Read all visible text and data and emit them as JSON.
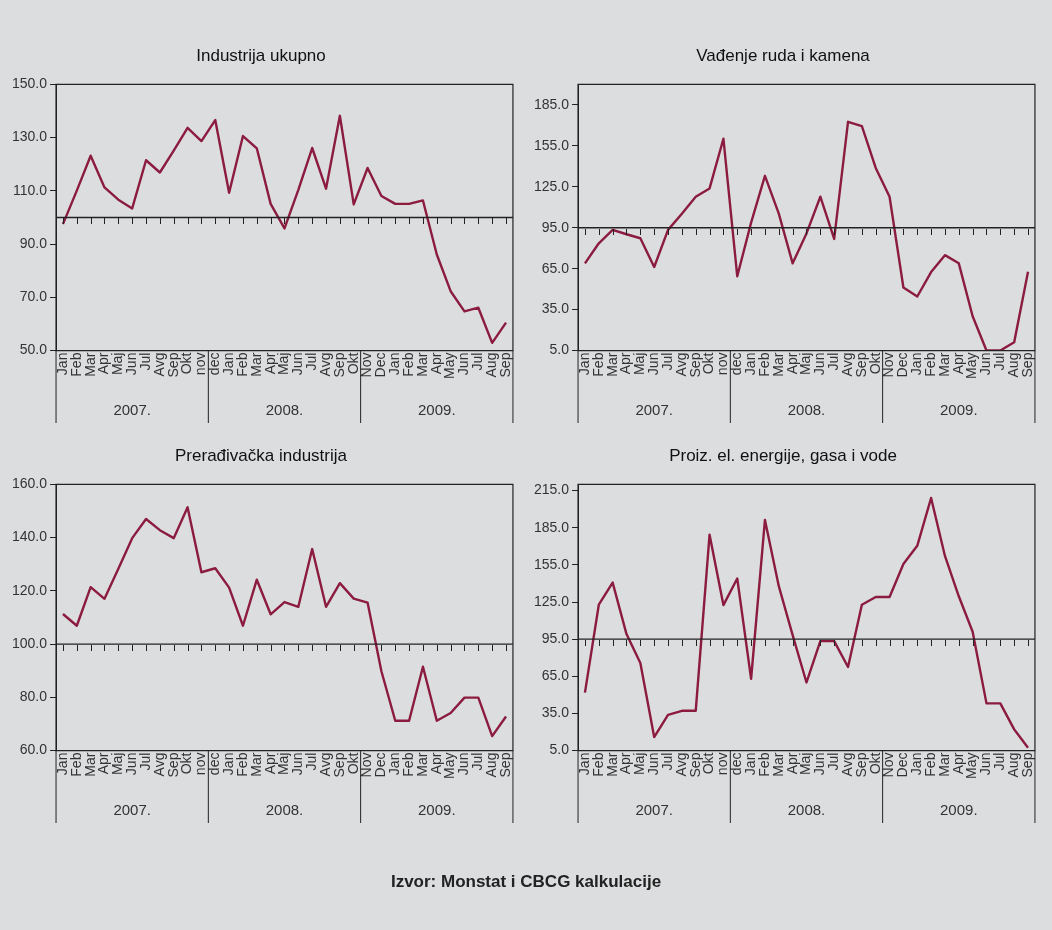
{
  "chart_data": [
    {
      "type": "line",
      "title": "Industrija ukupno",
      "categories": [
        "Jan",
        "Feb",
        "Mar",
        "Apr",
        "Maj",
        "Jun",
        "Jul",
        "Avg",
        "Sep",
        "Okt",
        "nov",
        "dec",
        "Jan",
        "Feb",
        "Mar",
        "Apr",
        "Maj",
        "Jun",
        "Jul",
        "Avg",
        "Sep",
        "Okt",
        "Nov",
        "Dec",
        "Jan",
        "Feb",
        "Mar",
        "Apr",
        "May",
        "Jun",
        "Jul",
        "Aug",
        "Sep"
      ],
      "series": [
        {
          "color": "#8b1c3f",
          "values": [
            97.5,
            110.1,
            123.2,
            111.3,
            106.7,
            103.4,
            121.5,
            116.9,
            125.1,
            133.7,
            128.7,
            136.6,
            109.3,
            130.6,
            126.0,
            105.1,
            95.9,
            110.4,
            126.1,
            110.8,
            138.2,
            104.9,
            118.6,
            108.1,
            105.1,
            105.1,
            106.4,
            86.1,
            72.3,
            64.7,
            66.1,
            52.9,
            60.5
          ]
        }
      ],
      "ylim": [
        50,
        150
      ],
      "yticks": [
        {
          "value": 50,
          "label": "50.0"
        },
        {
          "value": 70,
          "label": "70.0"
        },
        {
          "value": 90,
          "label": "90.0"
        },
        {
          "value": 110,
          "label": "110.0"
        },
        {
          "value": 130,
          "label": "130.0"
        },
        {
          "value": 150,
          "label": "150.0"
        }
      ],
      "ref_lines": [
        {
          "axis": "y",
          "value": 100
        }
      ],
      "grid": false,
      "legend": false,
      "marker": "none",
      "line_style": "solid",
      "annotations": [
        "2007.",
        "2008.",
        "2009."
      ]
    },
    {
      "type": "line",
      "title": "Vađenje ruda i kamena",
      "categories": [
        "Jan",
        "Feb",
        "Mar",
        "Apr",
        "Maj",
        "Jun",
        "Jul",
        "Avg",
        "Sep",
        "Okt",
        "nov",
        "dec",
        "Jan",
        "Feb",
        "Mar",
        "Apr",
        "Maj",
        "Jun",
        "Jul",
        "Avg",
        "Sep",
        "Okt",
        "Nov",
        "Dec",
        "Jan",
        "Feb",
        "Mar",
        "Apr",
        "May",
        "Jun",
        "Jul",
        "Aug",
        "Sep"
      ],
      "series": [
        {
          "color": "#8b1c3f",
          "values": [
            68.9,
            83.6,
            93.4,
            90.2,
            87.3,
            66.2,
            93.4,
            105.3,
            117.7,
            123.8,
            160.2,
            59.4,
            98.7,
            133.0,
            105.3,
            68.9,
            90.8,
            117.7,
            86.8,
            172.6,
            169.4,
            138.8,
            117.7,
            51.2,
            44.6,
            62.5,
            74.9,
            68.9,
            30.1,
            5,
            5,
            11.1,
            62.8
          ]
        }
      ],
      "ylim": [
        5,
        200
      ],
      "yticks": [
        {
          "value": 5,
          "label": "5.0"
        },
        {
          "value": 35,
          "label": "35.0"
        },
        {
          "value": 65,
          "label": "65.0"
        },
        {
          "value": 95,
          "label": "95.0"
        },
        {
          "value": 125,
          "label": "125.0"
        },
        {
          "value": 155,
          "label": "155.0"
        },
        {
          "value": 185,
          "label": "185.0"
        }
      ],
      "ref_lines": [
        {
          "axis": "y",
          "value": 95
        }
      ],
      "grid": false,
      "legend": false,
      "marker": "none",
      "line_style": "solid",
      "annotations": [
        "2007.",
        "2008.",
        "2009."
      ]
    },
    {
      "type": "line",
      "title": "Prerađivačka industrija",
      "categories": [
        "Jan",
        "Feb",
        "Mar",
        "Apr",
        "Maj",
        "Jun",
        "Jul",
        "Avg",
        "Sep",
        "Okt",
        "nov",
        "dec",
        "Jan",
        "Feb",
        "Mar",
        "Apr",
        "Maj",
        "Jun",
        "Jul",
        "Avg",
        "Sep",
        "Okt",
        "Nov",
        "Dec",
        "Jan",
        "Feb",
        "Mar",
        "Apr",
        "May",
        "Jun",
        "Jul",
        "Aug",
        "Sep"
      ],
      "series": [
        {
          "color": "#8b1c3f",
          "values": [
            111.3,
            106.9,
            121.4,
            117.0,
            128.3,
            139.8,
            147.0,
            142.8,
            139.8,
            151.4,
            127.0,
            128.5,
            121.2,
            106.9,
            124.2,
            111.2,
            115.8,
            114.0,
            135.7,
            114.0,
            122.9,
            117.1,
            115.6,
            89.8,
            71.2,
            71.2,
            91.5,
            71.2,
            74.1,
            79.9,
            79.9,
            65.4,
            72.8
          ]
        }
      ],
      "ylim": [
        60,
        160
      ],
      "yticks": [
        {
          "value": 60,
          "label": "60.0"
        },
        {
          "value": 80,
          "label": "80.0"
        },
        {
          "value": 100,
          "label": "100.0"
        },
        {
          "value": 120,
          "label": "120.0"
        },
        {
          "value": 140,
          "label": "140.0"
        },
        {
          "value": 160,
          "label": "160.0"
        }
      ],
      "ref_lines": [
        {
          "axis": "y",
          "value": 100
        }
      ],
      "grid": false,
      "legend": false,
      "marker": "none",
      "line_style": "solid",
      "annotations": [
        "2007.",
        "2008.",
        "2009."
      ]
    },
    {
      "type": "line",
      "title": "Proiz. el. energije, gasa i vode",
      "categories": [
        "Jan",
        "Feb",
        "Mar",
        "Apr",
        "Maj",
        "Jun",
        "Jul",
        "Avg",
        "Sep",
        "Okt",
        "nov",
        "dec",
        "Jan",
        "Feb",
        "Mar",
        "Apr",
        "Maj",
        "Jun",
        "Jul",
        "Avg",
        "Sep",
        "Okt",
        "Nov",
        "Dec",
        "Jan",
        "Feb",
        "Mar",
        "Apr",
        "May",
        "Jun",
        "Jul",
        "Aug",
        "Sep"
      ],
      "series": [
        {
          "color": "#8b1c3f",
          "values": [
            51.8,
            122.8,
            140.7,
            99.1,
            75.7,
            15.9,
            33.8,
            37.1,
            37.1,
            179.4,
            122.5,
            144.0,
            62.9,
            191.3,
            137.8,
            98.3,
            60.0,
            93.4,
            93.4,
            72.5,
            122.8,
            129.0,
            129.0,
            155.7,
            170.4,
            209.0,
            162.2,
            129.6,
            101.0,
            43.1,
            43.1,
            22.1,
            7.2
          ]
        }
      ],
      "ylim": [
        5,
        220
      ],
      "yticks": [
        {
          "value": 5,
          "label": "5.0"
        },
        {
          "value": 35,
          "label": "35.0"
        },
        {
          "value": 65,
          "label": "65.0"
        },
        {
          "value": 95,
          "label": "95.0"
        },
        {
          "value": 125,
          "label": "125.0"
        },
        {
          "value": 155,
          "label": "155.0"
        },
        {
          "value": 185,
          "label": "185.0"
        },
        {
          "value": 215,
          "label": "215.0"
        }
      ],
      "ref_lines": [
        {
          "axis": "y",
          "value": 95
        }
      ],
      "grid": false,
      "legend": false,
      "marker": "none",
      "line_style": "solid",
      "annotations": [
        "2007.",
        "2008.",
        "2009."
      ]
    },
    {
      "type": "other",
      "annotations": [
        "Izvor: Monstat i CBCG kalkulacije"
      ]
    }
  ]
}
